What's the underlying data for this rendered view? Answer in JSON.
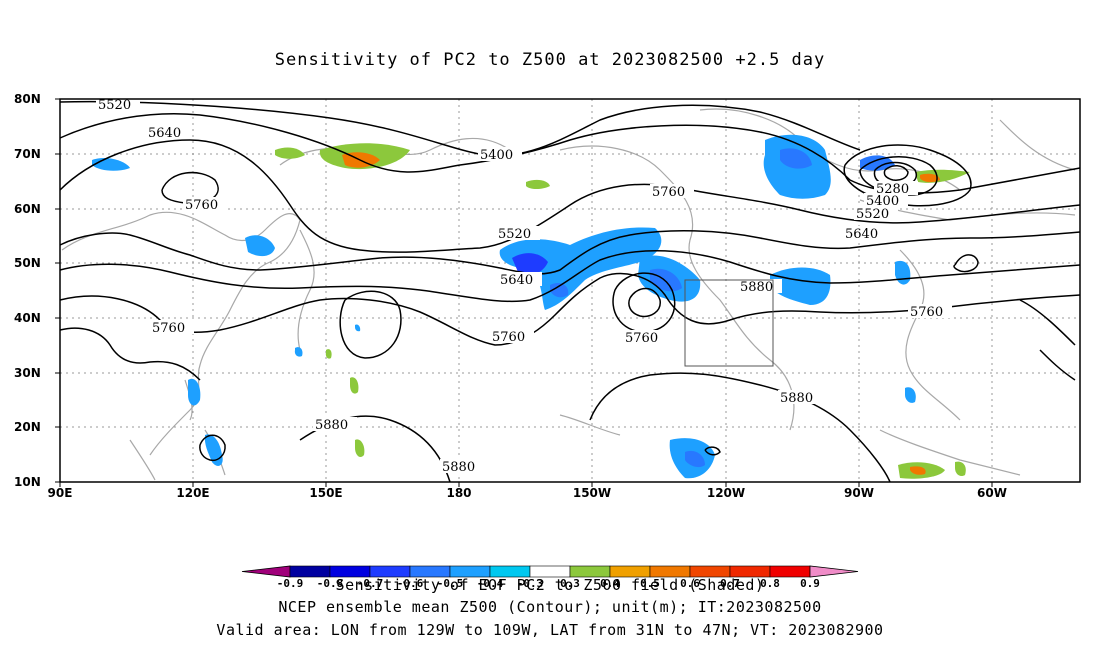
{
  "title": "Sensitivity of PC2 to Z500 at 2023082500 +2.5 day",
  "lat_labels": [
    "80N",
    "70N",
    "60N",
    "50N",
    "40N",
    "30N",
    "20N",
    "10N"
  ],
  "lon_labels": [
    "90E",
    "120E",
    "150E",
    "180",
    "150W",
    "120W",
    "90W",
    "60W"
  ],
  "contour_labels": [
    "5520",
    "5640",
    "5400",
    "5760",
    "5760",
    "5280",
    "5400",
    "5520",
    "5640",
    "5520",
    "5640",
    "5760",
    "5880",
    "5760",
    "5760",
    "5760",
    "5880",
    "5880",
    "5880"
  ],
  "colorbar_labels": [
    "-0.9",
    "-0.8",
    "-0.7",
    "-0.6",
    "-0.5",
    "-0.4",
    "-0.3",
    "0.3",
    "0.4",
    "0.5",
    "0.6",
    "0.7",
    "0.8",
    "0.9"
  ],
  "colorbar_colors": [
    "#a0007a",
    "#0000a0",
    "#0000e0",
    "#1e3cff",
    "#2878ff",
    "#1ea0ff",
    "#00c8f0",
    "#ffffff",
    "#8cc83c",
    "#f0a000",
    "#f07800",
    "#f04600",
    "#f02800",
    "#f00000",
    "#f08cc8"
  ],
  "footer_lines": [
    "Sensitivity of EOF PC2 to Z500 field (Shaded)",
    "NCEP ensemble mean Z500 (Contour); unit(m); IT:2023082500",
    "Valid area: LON from 129W to 109W, LAT from 31N to 47N; VT: 2023082900"
  ]
}
